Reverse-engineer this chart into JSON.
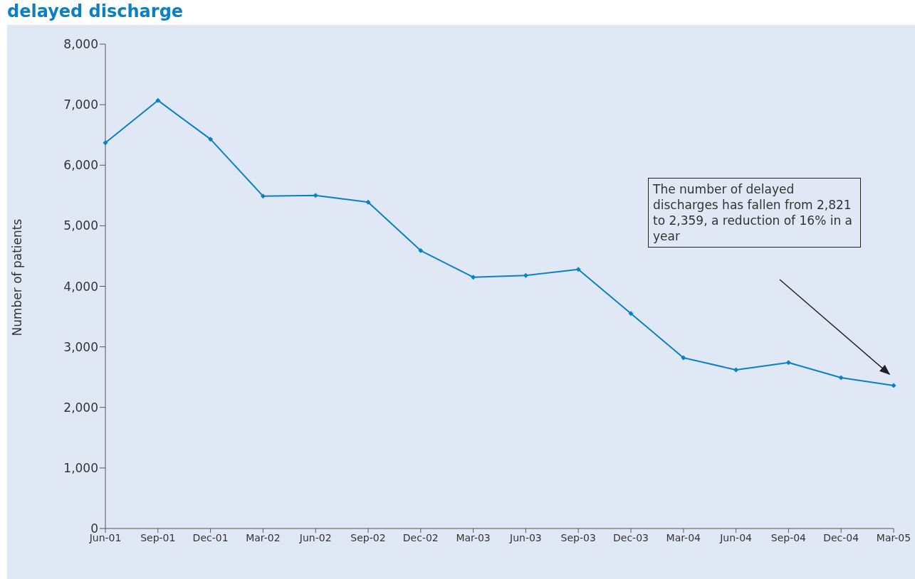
{
  "chart_data": {
    "type": "line",
    "title": "delayed discharge",
    "ylabel": "Number of patients",
    "categories": [
      "Jun-01",
      "Sep-01",
      "Dec-01",
      "Mar-02",
      "Jun-02",
      "Sep-02",
      "Dec-02",
      "Mar-03",
      "Jun-03",
      "Sep-03",
      "Dec-03",
      "Mar-04",
      "Jun-04",
      "Sep-04",
      "Dec-04",
      "Mar-05"
    ],
    "series": [
      {
        "color": "#0a80c6",
        "values": [
          6370,
          7070,
          6430,
          5490,
          5500,
          5390,
          4590,
          4150,
          4180,
          4280,
          3550,
          2820,
          2620,
          2740,
          2490,
          2360
        ]
      }
    ],
    "ylim": [
      0,
      8000
    ],
    "yticks": [
      0,
      {
        "value": 1000,
        "label": "1,000"
      },
      {
        "value": 2000,
        "label": "2,000"
      },
      {
        "value": 3000,
        "label": "3,000"
      },
      {
        "value": 4000,
        "label": "4,000"
      },
      {
        "value": 5000,
        "label": "5,000"
      },
      {
        "value": 6000,
        "label": "6,000"
      },
      {
        "value": 7000,
        "label": "7,000"
      },
      {
        "value": 8000,
        "label": "8,000"
      }
    ],
    "marker": "diamond",
    "line_style": "solid",
    "grid": false,
    "legend": false,
    "annotations": [
      "The number of delayed discharges has fallen from 2,821 to 2,359, a reduction of 16% in a year"
    ]
  }
}
